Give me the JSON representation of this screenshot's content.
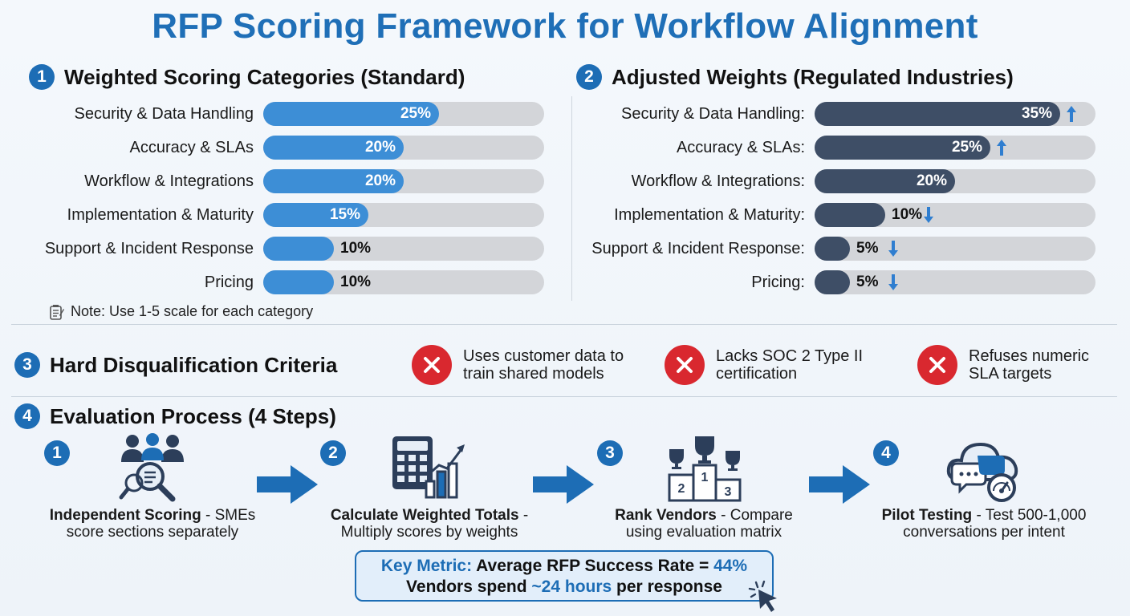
{
  "title": "RFP Scoring Framework for Workflow Alignment",
  "colors": {
    "accent": "#1d6db5",
    "standard_bar": "#3d8ed6",
    "regulated_bar": "#3e4e66",
    "track": "#d3d5d9",
    "disqualify": "#d9282f"
  },
  "sections": {
    "s1": {
      "num": "1",
      "title": "Weighted Scoring Categories (Standard)"
    },
    "s2": {
      "num": "2",
      "title": "Adjusted Weights (Regulated Industries)"
    },
    "s3": {
      "num": "3",
      "title": "Hard Disqualification Criteria"
    },
    "s4": {
      "num": "4",
      "title": "Evaluation Process (4 Steps)"
    }
  },
  "note": {
    "icon": "notepad-icon",
    "text": "Note: Use 1-5 scale for each category"
  },
  "chart_data": [
    {
      "type": "bar",
      "orientation": "horizontal",
      "title": "Weighted Scoring Categories (Standard)",
      "categories": [
        "Security & Data Handling",
        "Accuracy & SLAs",
        "Workflow & Integrations",
        "Implementation & Maturity",
        "Support & Incident Response",
        "Pricing"
      ],
      "values": [
        25,
        20,
        20,
        15,
        10,
        10
      ],
      "value_labels": [
        "25%",
        "20%",
        "20%",
        "15%",
        "10%",
        "10%"
      ],
      "xlim": [
        0,
        40
      ]
    },
    {
      "type": "bar",
      "orientation": "horizontal",
      "title": "Adjusted Weights (Regulated Industries)",
      "categories": [
        "Security & Data Handling:",
        "Accuracy & SLAs:",
        "Workflow & Integrations:",
        "Implementation & Maturity:",
        "Support & Incident Response:",
        "Pricing:"
      ],
      "values": [
        35,
        25,
        20,
        10,
        5,
        5
      ],
      "value_labels": [
        "35%",
        "25%",
        "20%",
        "10%",
        "5%",
        "5%"
      ],
      "trend": [
        "up",
        "up",
        "none",
        "down",
        "down",
        "down"
      ],
      "xlim": [
        0,
        40
      ]
    }
  ],
  "disqualifiers": [
    {
      "icon": "x-circle-icon",
      "lines": [
        "Uses customer data to",
        "train shared models"
      ]
    },
    {
      "icon": "x-circle-icon",
      "lines": [
        "Lacks SOC 2 Type II",
        "certification"
      ]
    },
    {
      "icon": "x-circle-icon",
      "lines": [
        "Refuses numeric",
        "SLA targets"
      ]
    }
  ],
  "steps": [
    {
      "num": "1",
      "icon": "team-magnifier-icon",
      "bold": "Independent Scoring",
      "rest": " - SMEs",
      "line2": "score sections separately"
    },
    {
      "num": "2",
      "icon": "calculator-chart-icon",
      "bold": "Calculate Weighted Totals",
      "rest": " -",
      "line2": "Multiply scores by weights"
    },
    {
      "num": "3",
      "icon": "podium-trophy-icon",
      "bold": "Rank Vendors",
      "rest": " - Compare",
      "line2": "using evaluation matrix"
    },
    {
      "num": "4",
      "icon": "cloud-chat-gauge-icon",
      "bold": "Pilot Testing",
      "rest": " - Test 500-1,000",
      "line2": "conversations per intent"
    }
  ],
  "metric": {
    "label": "Key Metric:",
    "line1_text": " Average RFP Success Rate = ",
    "line1_value": "44%",
    "line2_pre": "Vendors spend ",
    "line2_value": "~24 hours",
    "line2_post": " per response",
    "icon": "cursor-click-icon"
  }
}
